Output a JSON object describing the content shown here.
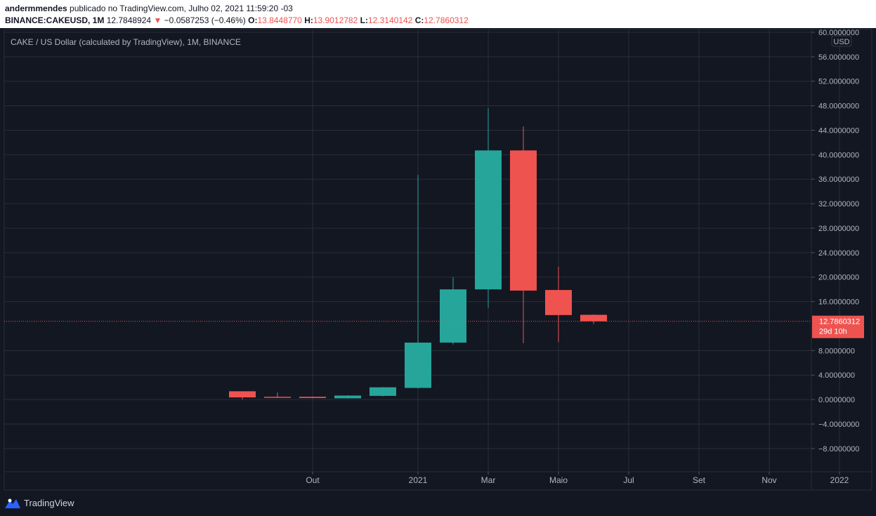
{
  "header": {
    "publisher": "andermmendes",
    "published_text": "publicado no TradingView.com, Julho 02, 2021 11:59:20 -03",
    "symbol": "BINANCE:CAKEUSD, 1M",
    "last": "12.7848924",
    "arrow": "▼",
    "change": "−0.0587253 (−0.46%)",
    "o_label": "O:",
    "o_value": "13.8448770",
    "h_label": "H:",
    "h_value": "13.9012782",
    "l_label": "L:",
    "l_value": "12.3140142",
    "c_label": "C:",
    "c_value": "12.7860312"
  },
  "chart_data": {
    "type": "candlestick",
    "title": "CAKE / US Dollar (calculated by TradingView), 1M, BINANCE",
    "currency": "USD",
    "ylim": [
      -11.8,
      60
    ],
    "y_ticks": [
      60,
      56,
      52,
      48,
      44,
      40,
      36,
      32,
      28,
      24,
      20,
      16,
      8,
      4,
      0,
      -4,
      -8
    ],
    "y_tick_labels": [
      "60.0000000",
      "56.0000000",
      "52.0000000",
      "48.0000000",
      "44.0000000",
      "40.0000000",
      "36.0000000",
      "32.0000000",
      "28.0000000",
      "24.0000000",
      "20.0000000",
      "16.0000000",
      "8.0000000",
      "4.0000000",
      "0.0000000",
      "−4.0000000",
      "−8.0000000"
    ],
    "x_labels": [
      {
        "label": "Out",
        "month": 3
      },
      {
        "label": "2021",
        "month": 6
      },
      {
        "label": "Mar",
        "month": 8
      },
      {
        "label": "Maio",
        "month": 10
      },
      {
        "label": "Jul",
        "month": 12
      },
      {
        "label": "Set",
        "month": 14
      },
      {
        "label": "Nov",
        "month": 16
      },
      {
        "label": "2022",
        "month": 18
      }
    ],
    "candles": [
      {
        "month": 1,
        "period": "2020-08",
        "open": 1.35,
        "high": 1.35,
        "low": 0.0,
        "close": 0.35
      },
      {
        "month": 2,
        "period": "2020-09",
        "open": 0.45,
        "high": 1.15,
        "low": 0.25,
        "close": 0.3
      },
      {
        "month": 3,
        "period": "2020-10",
        "open": 0.45,
        "high": 0.5,
        "low": 0.2,
        "close": 0.25
      },
      {
        "month": 4,
        "period": "2020-11",
        "open": 0.2,
        "high": 0.7,
        "low": 0.15,
        "close": 0.65
      },
      {
        "month": 5,
        "period": "2020-12",
        "open": 0.6,
        "high": 2.05,
        "low": 0.5,
        "close": 2.0
      },
      {
        "month": 6,
        "period": "2021-01",
        "open": 1.9,
        "high": 36.7,
        "low": 1.8,
        "close": 9.3
      },
      {
        "month": 7,
        "period": "2021-02",
        "open": 9.3,
        "high": 20.0,
        "low": 9.0,
        "close": 18.0
      },
      {
        "month": 8,
        "period": "2021-03",
        "open": 18.0,
        "high": 47.6,
        "low": 15.0,
        "close": 40.7
      },
      {
        "month": 9,
        "period": "2021-04",
        "open": 40.7,
        "high": 44.6,
        "low": 9.2,
        "close": 17.8
      },
      {
        "month": 10,
        "period": "2021-05",
        "open": 17.9,
        "high": 21.7,
        "low": 9.4,
        "close": 13.8
      },
      {
        "month": 11,
        "period": "2021-06",
        "open": 13.844877,
        "high": 13.9012782,
        "low": 12.3140142,
        "close": 12.7860312
      }
    ],
    "last_price_label": "12.7860312",
    "countdown_label": "29d 10h",
    "colors": {
      "up": "#26a69a",
      "down": "#ef5350",
      "background": "#131722",
      "grid": "#2a2e39",
      "text": "#b2b5be"
    }
  },
  "footer": {
    "brand": "TradingView"
  }
}
